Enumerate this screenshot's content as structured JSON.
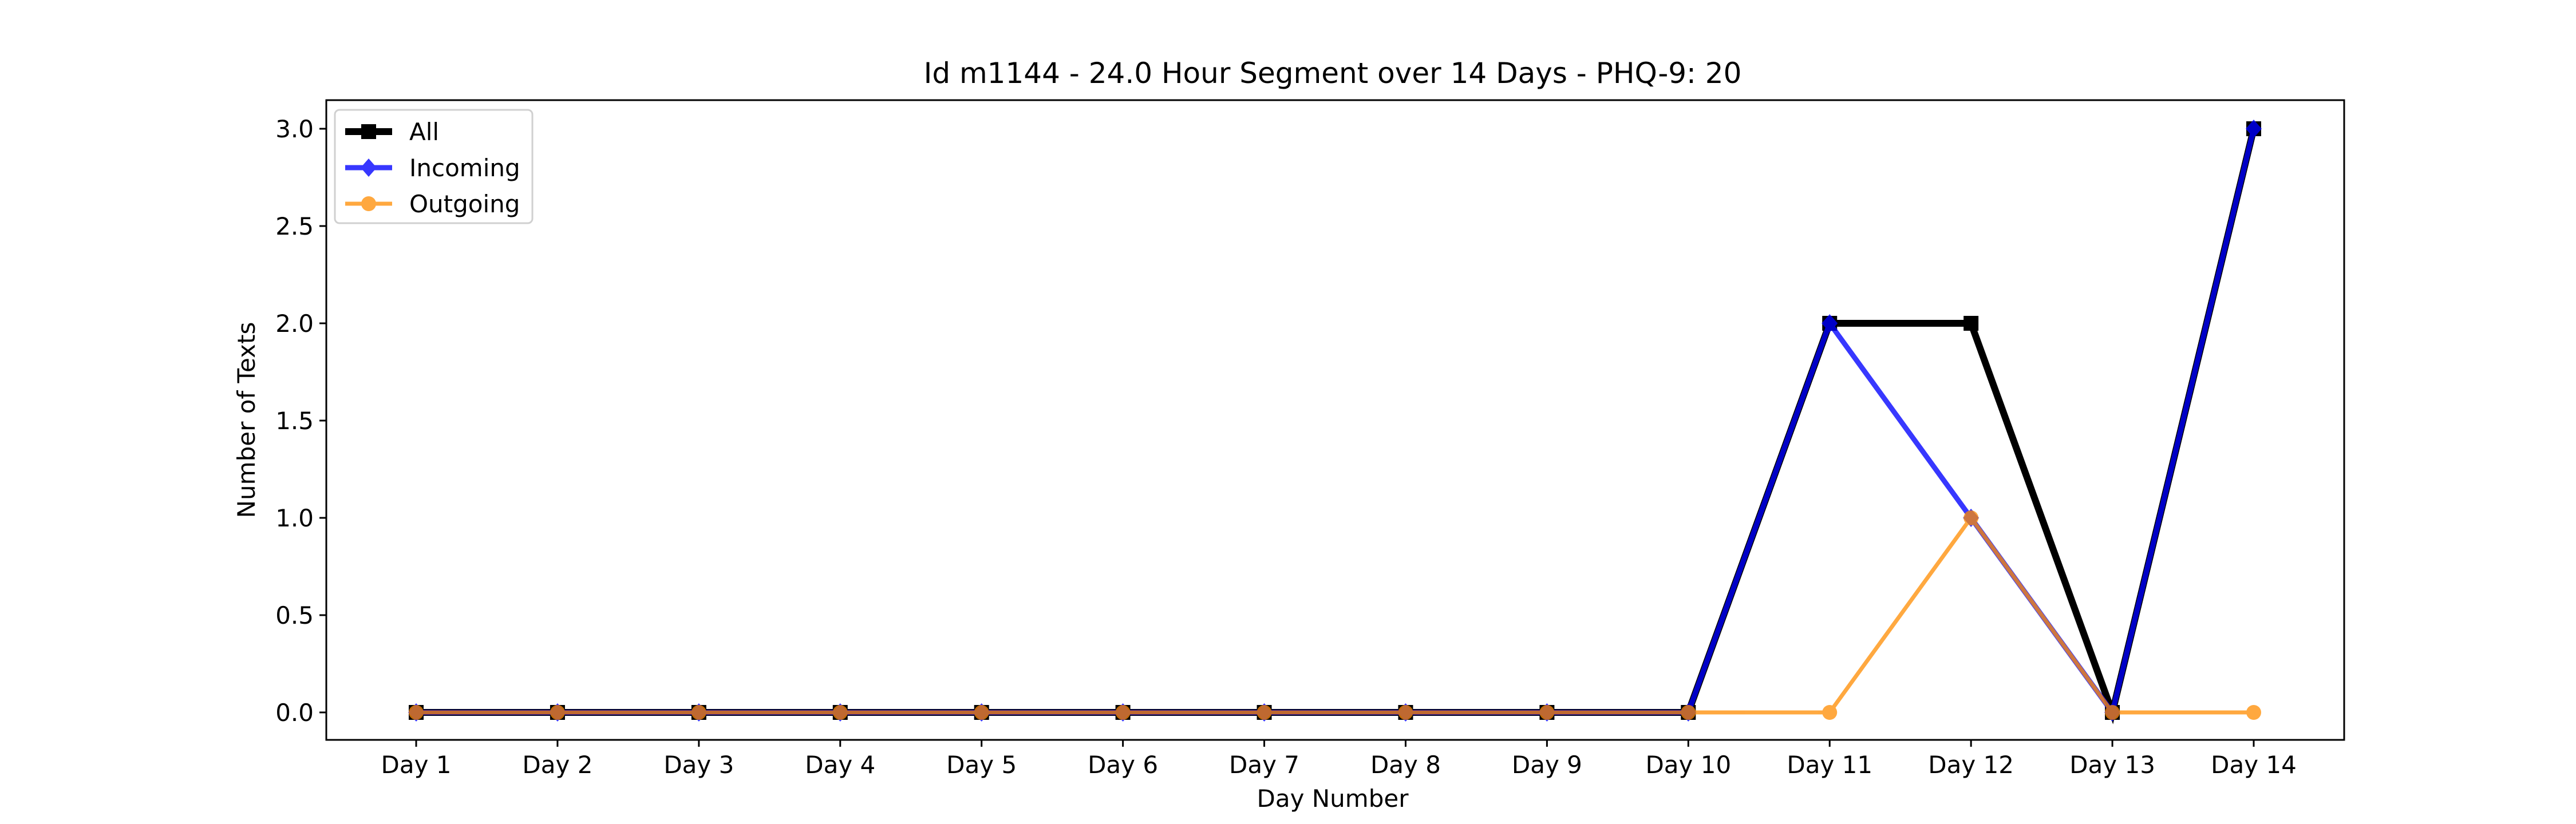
{
  "chart_data": {
    "type": "line",
    "title": "Id m1144 - 24.0 Hour Segment over 14 Days - PHQ-9: 20",
    "xlabel": "Day Number",
    "ylabel": "Number of Texts",
    "categories": [
      "Day 1",
      "Day 2",
      "Day 3",
      "Day 4",
      "Day 5",
      "Day 6",
      "Day 7",
      "Day 8",
      "Day 9",
      "Day 10",
      "Day 11",
      "Day 12",
      "Day 13",
      "Day 14"
    ],
    "ylim": [
      -0.15,
      3.15
    ],
    "yticks": [
      "0.0",
      "0.5",
      "1.0",
      "1.5",
      "2.0",
      "2.5",
      "3.0"
    ],
    "grid": false,
    "legend_position": "top-left",
    "series": [
      {
        "name": "All",
        "color": "#000000",
        "marker": "square",
        "values": [
          0,
          0,
          0,
          0,
          0,
          0,
          0,
          0,
          0,
          0,
          2,
          2,
          0,
          3
        ]
      },
      {
        "name": "Incoming",
        "color": "#0000ff",
        "marker": "diamond",
        "values": [
          0,
          0,
          0,
          0,
          0,
          0,
          0,
          0,
          0,
          0,
          2,
          1,
          0,
          3
        ]
      },
      {
        "name": "Outgoing",
        "color": "#ff8c00",
        "marker": "circle",
        "values": [
          0,
          0,
          0,
          0,
          0,
          0,
          0,
          0,
          0,
          0,
          0,
          1,
          0,
          0
        ]
      }
    ]
  }
}
